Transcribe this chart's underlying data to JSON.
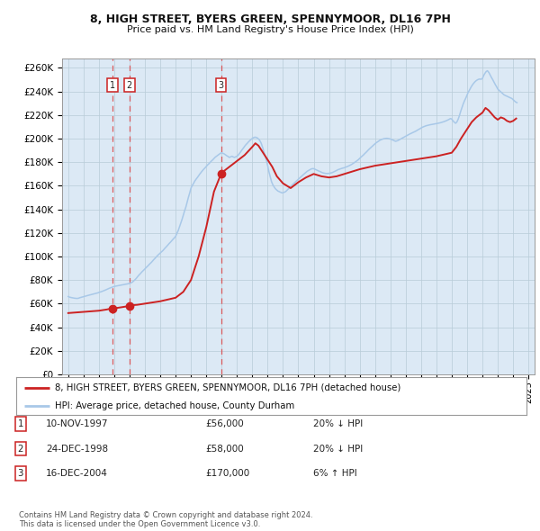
{
  "title": "8, HIGH STREET, BYERS GREEN, SPENNYMOOR, DL16 7PH",
  "subtitle": "Price paid vs. HM Land Registry's House Price Index (HPI)",
  "fig_bg_color": "#ffffff",
  "plot_bg_color": "#dce9f5",
  "ylabel_ticks": [
    "£0",
    "£20K",
    "£40K",
    "£60K",
    "£80K",
    "£100K",
    "£120K",
    "£140K",
    "£160K",
    "£180K",
    "£200K",
    "£220K",
    "£240K",
    "£260K"
  ],
  "ytick_values": [
    0,
    20000,
    40000,
    60000,
    80000,
    100000,
    120000,
    140000,
    160000,
    180000,
    200000,
    220000,
    240000,
    260000
  ],
  "ylim": [
    0,
    268000
  ],
  "xlim_start": 1994.6,
  "xlim_end": 2025.4,
  "sales": [
    {
      "date_num": 1997.87,
      "price": 56000,
      "label": "1"
    },
    {
      "date_num": 1998.98,
      "price": 58000,
      "label": "2"
    },
    {
      "date_num": 2004.96,
      "price": 170000,
      "label": "3"
    }
  ],
  "legend_line1": "8, HIGH STREET, BYERS GREEN, SPENNYMOOR, DL16 7PH (detached house)",
  "legend_line2": "HPI: Average price, detached house, County Durham",
  "table_rows": [
    {
      "num": "1",
      "date": "10-NOV-1997",
      "price": "£56,000",
      "hpi": "20% ↓ HPI"
    },
    {
      "num": "2",
      "date": "24-DEC-1998",
      "price": "£58,000",
      "hpi": "20% ↓ HPI"
    },
    {
      "num": "3",
      "date": "16-DEC-2004",
      "price": "£170,000",
      "hpi": "6% ↑ HPI"
    }
  ],
  "copyright": "Contains HM Land Registry data © Crown copyright and database right 2024.\nThis data is licensed under the Open Government Licence v3.0.",
  "hpi_years": [
    1995.0,
    1995.08,
    1995.17,
    1995.25,
    1995.33,
    1995.42,
    1995.5,
    1995.58,
    1995.67,
    1995.75,
    1995.83,
    1995.92,
    1996.0,
    1996.08,
    1996.17,
    1996.25,
    1996.33,
    1996.42,
    1996.5,
    1996.58,
    1996.67,
    1996.75,
    1996.83,
    1996.92,
    1997.0,
    1997.08,
    1997.17,
    1997.25,
    1997.33,
    1997.42,
    1997.5,
    1997.58,
    1997.67,
    1997.75,
    1997.83,
    1997.92,
    1998.0,
    1998.08,
    1998.17,
    1998.25,
    1998.33,
    1998.42,
    1998.5,
    1998.58,
    1998.67,
    1998.75,
    1998.83,
    1998.92,
    1999.0,
    1999.08,
    1999.17,
    1999.25,
    1999.33,
    1999.42,
    1999.5,
    1999.58,
    1999.67,
    1999.75,
    1999.83,
    1999.92,
    2000.0,
    2000.08,
    2000.17,
    2000.25,
    2000.33,
    2000.42,
    2000.5,
    2000.58,
    2000.67,
    2000.75,
    2000.83,
    2000.92,
    2001.0,
    2001.08,
    2001.17,
    2001.25,
    2001.33,
    2001.42,
    2001.5,
    2001.58,
    2001.67,
    2001.75,
    2001.83,
    2001.92,
    2002.0,
    2002.08,
    2002.17,
    2002.25,
    2002.33,
    2002.42,
    2002.5,
    2002.58,
    2002.67,
    2002.75,
    2002.83,
    2002.92,
    2003.0,
    2003.08,
    2003.17,
    2003.25,
    2003.33,
    2003.42,
    2003.5,
    2003.58,
    2003.67,
    2003.75,
    2003.83,
    2003.92,
    2004.0,
    2004.08,
    2004.17,
    2004.25,
    2004.33,
    2004.42,
    2004.5,
    2004.58,
    2004.67,
    2004.75,
    2004.83,
    2004.92,
    2005.0,
    2005.08,
    2005.17,
    2005.25,
    2005.33,
    2005.42,
    2005.5,
    2005.58,
    2005.67,
    2005.75,
    2005.83,
    2005.92,
    2006.0,
    2006.08,
    2006.17,
    2006.25,
    2006.33,
    2006.42,
    2006.5,
    2006.58,
    2006.67,
    2006.75,
    2006.83,
    2006.92,
    2007.0,
    2007.08,
    2007.17,
    2007.25,
    2007.33,
    2007.42,
    2007.5,
    2007.58,
    2007.67,
    2007.75,
    2007.83,
    2007.92,
    2008.0,
    2008.08,
    2008.17,
    2008.25,
    2008.33,
    2008.42,
    2008.5,
    2008.58,
    2008.67,
    2008.75,
    2008.83,
    2008.92,
    2009.0,
    2009.08,
    2009.17,
    2009.25,
    2009.33,
    2009.42,
    2009.5,
    2009.58,
    2009.67,
    2009.75,
    2009.83,
    2009.92,
    2010.0,
    2010.08,
    2010.17,
    2010.25,
    2010.33,
    2010.42,
    2010.5,
    2010.58,
    2010.67,
    2010.75,
    2010.83,
    2010.92,
    2011.0,
    2011.08,
    2011.17,
    2011.25,
    2011.33,
    2011.42,
    2011.5,
    2011.58,
    2011.67,
    2011.75,
    2011.83,
    2011.92,
    2012.0,
    2012.08,
    2012.17,
    2012.25,
    2012.33,
    2012.42,
    2012.5,
    2012.58,
    2012.67,
    2012.75,
    2012.83,
    2012.92,
    2013.0,
    2013.08,
    2013.17,
    2013.25,
    2013.33,
    2013.42,
    2013.5,
    2013.58,
    2013.67,
    2013.75,
    2013.83,
    2013.92,
    2014.0,
    2014.08,
    2014.17,
    2014.25,
    2014.33,
    2014.42,
    2014.5,
    2014.58,
    2014.67,
    2014.75,
    2014.83,
    2014.92,
    2015.0,
    2015.08,
    2015.17,
    2015.25,
    2015.33,
    2015.42,
    2015.5,
    2015.58,
    2015.67,
    2015.75,
    2015.83,
    2015.92,
    2016.0,
    2016.08,
    2016.17,
    2016.25,
    2016.33,
    2016.42,
    2016.5,
    2016.58,
    2016.67,
    2016.75,
    2016.83,
    2016.92,
    2017.0,
    2017.08,
    2017.17,
    2017.25,
    2017.33,
    2017.42,
    2017.5,
    2017.58,
    2017.67,
    2017.75,
    2017.83,
    2017.92,
    2018.0,
    2018.08,
    2018.17,
    2018.25,
    2018.33,
    2018.42,
    2018.5,
    2018.58,
    2018.67,
    2018.75,
    2018.83,
    2018.92,
    2019.0,
    2019.08,
    2019.17,
    2019.25,
    2019.33,
    2019.42,
    2019.5,
    2019.58,
    2019.67,
    2019.75,
    2019.83,
    2019.92,
    2020.0,
    2020.08,
    2020.17,
    2020.25,
    2020.33,
    2020.42,
    2020.5,
    2020.58,
    2020.67,
    2020.75,
    2020.83,
    2020.92,
    2021.0,
    2021.08,
    2021.17,
    2021.25,
    2021.33,
    2021.42,
    2021.5,
    2021.58,
    2021.67,
    2021.75,
    2021.83,
    2021.92,
    2022.0,
    2022.08,
    2022.17,
    2022.25,
    2022.33,
    2022.42,
    2022.5,
    2022.58,
    2022.67,
    2022.75,
    2022.83,
    2022.92,
    2023.0,
    2023.08,
    2023.17,
    2023.25,
    2023.33,
    2023.42,
    2023.5,
    2023.58,
    2023.67,
    2023.75,
    2023.83,
    2023.92,
    2024.0,
    2024.08,
    2024.17,
    2024.25
  ],
  "hpi_values": [
    66000,
    65500,
    65200,
    65000,
    64800,
    64600,
    64500,
    64400,
    64600,
    65000,
    65300,
    65600,
    66000,
    66300,
    66500,
    66800,
    67100,
    67400,
    67700,
    68000,
    68300,
    68500,
    68800,
    69100,
    69500,
    69800,
    70200,
    70600,
    71000,
    71500,
    72000,
    72500,
    73000,
    73400,
    73800,
    74200,
    74600,
    74800,
    75000,
    75200,
    75400,
    75600,
    75800,
    76000,
    76200,
    76400,
    76600,
    76900,
    77200,
    77600,
    78100,
    79000,
    80000,
    81200,
    82500,
    83800,
    85000,
    86200,
    87300,
    88400,
    89500,
    90600,
    91700,
    92800,
    93900,
    95000,
    96200,
    97400,
    98600,
    99800,
    100900,
    102000,
    103000,
    104000,
    105000,
    106200,
    107400,
    108600,
    109800,
    111000,
    112200,
    113400,
    114600,
    115800,
    117000,
    119500,
    122000,
    125000,
    128000,
    131500,
    135000,
    138500,
    142000,
    146000,
    150000,
    154000,
    158000,
    160000,
    162000,
    164000,
    165500,
    167000,
    168500,
    170000,
    171500,
    172800,
    174000,
    175200,
    176400,
    177600,
    178700,
    179800,
    180900,
    182000,
    183100,
    184200,
    185100,
    186000,
    186800,
    187500,
    188000,
    187500,
    187000,
    186200,
    185500,
    184800,
    184000,
    184500,
    185000,
    184500,
    184000,
    184500,
    185000,
    186000,
    187500,
    189000,
    190500,
    192000,
    193500,
    194800,
    196000,
    197200,
    198200,
    199200,
    200200,
    200800,
    201200,
    201000,
    200500,
    199500,
    198000,
    196000,
    192500,
    189000,
    185500,
    181500,
    177000,
    172000,
    167500,
    163500,
    161000,
    159000,
    157500,
    156500,
    155500,
    155000,
    154500,
    154000,
    154000,
    154500,
    155000,
    156000,
    157000,
    158200,
    159400,
    160500,
    161500,
    162500,
    163500,
    164500,
    165500,
    166500,
    167500,
    168500,
    169500,
    170500,
    171500,
    172300,
    173000,
    173700,
    174200,
    174500,
    174500,
    174000,
    173500,
    173000,
    172500,
    172000,
    171500,
    171000,
    170700,
    170500,
    170400,
    170400,
    170500,
    170700,
    171000,
    171400,
    171900,
    172400,
    173000,
    173600,
    174000,
    174400,
    174700,
    175000,
    175300,
    175700,
    176100,
    176600,
    177100,
    177700,
    178300,
    179000,
    179700,
    180500,
    181300,
    182200,
    183200,
    184200,
    185200,
    186200,
    187300,
    188400,
    189500,
    190600,
    191700,
    192700,
    193700,
    194700,
    195600,
    196500,
    197300,
    198100,
    198700,
    199200,
    199600,
    199900,
    200100,
    200200,
    200100,
    199900,
    199600,
    199200,
    198700,
    198200,
    197700,
    198000,
    198400,
    199000,
    199600,
    200200,
    200800,
    201400,
    202000,
    202600,
    203200,
    203800,
    204300,
    204800,
    205300,
    205800,
    206400,
    207100,
    207700,
    208300,
    209000,
    209600,
    210100,
    210500,
    210900,
    211200,
    211500,
    211700,
    211900,
    212100,
    212300,
    212500,
    212700,
    212900,
    213100,
    213400,
    213700,
    214000,
    214400,
    214800,
    215300,
    215800,
    216400,
    217000,
    216500,
    215000,
    213800,
    213000,
    214000,
    216500,
    219500,
    223000,
    226500,
    229500,
    232000,
    234500,
    237000,
    239500,
    241500,
    243500,
    245200,
    246800,
    248000,
    249000,
    249800,
    250300,
    250500,
    250300,
    251000,
    253500,
    255500,
    257000,
    257500,
    256000,
    254000,
    252000,
    250000,
    248000,
    246000,
    244000,
    242000,
    241000,
    240000,
    239000,
    238000,
    237000,
    236500,
    236000,
    235500,
    235000,
    234500,
    234000,
    233000,
    232000,
    231000,
    230500
  ],
  "red_years": [
    1995.0,
    1995.5,
    1996.0,
    1996.5,
    1997.0,
    1997.5,
    1997.87,
    1998.0,
    1998.5,
    1998.98,
    1999.0,
    1999.5,
    2000.0,
    2000.5,
    2001.0,
    2001.5,
    2002.0,
    2002.5,
    2003.0,
    2003.5,
    2004.0,
    2004.5,
    2004.96,
    2005.0,
    2005.5,
    2006.0,
    2006.5,
    2007.0,
    2007.2,
    2007.4,
    2007.6,
    2007.8,
    2008.0,
    2008.3,
    2008.6,
    2009.0,
    2009.5,
    2010.0,
    2010.5,
    2011.0,
    2011.5,
    2012.0,
    2012.5,
    2013.0,
    2013.5,
    2014.0,
    2014.5,
    2015.0,
    2015.5,
    2016.0,
    2016.5,
    2017.0,
    2017.5,
    2018.0,
    2018.5,
    2019.0,
    2019.5,
    2020.0,
    2020.3,
    2020.6,
    2021.0,
    2021.3,
    2021.6,
    2022.0,
    2022.2,
    2022.4,
    2022.6,
    2022.8,
    2023.0,
    2023.2,
    2023.4,
    2023.6,
    2023.8,
    2024.0,
    2024.2
  ],
  "red_values": [
    52000,
    52500,
    53000,
    53500,
    54000,
    55000,
    56000,
    56000,
    57000,
    58000,
    58500,
    59000,
    60000,
    61000,
    62000,
    63500,
    65000,
    70000,
    80000,
    100000,
    125000,
    155000,
    170000,
    171000,
    176000,
    181000,
    186000,
    193000,
    196000,
    194000,
    190000,
    186000,
    182000,
    176000,
    168000,
    162000,
    158000,
    163000,
    167000,
    170000,
    168000,
    167000,
    168000,
    170000,
    172000,
    174000,
    175500,
    177000,
    178000,
    179000,
    180000,
    181000,
    182000,
    183000,
    184000,
    185000,
    186500,
    188000,
    193000,
    200000,
    208000,
    214000,
    218000,
    222000,
    226000,
    224000,
    221000,
    218000,
    216000,
    218000,
    217000,
    215000,
    214000,
    215000,
    217000
  ]
}
